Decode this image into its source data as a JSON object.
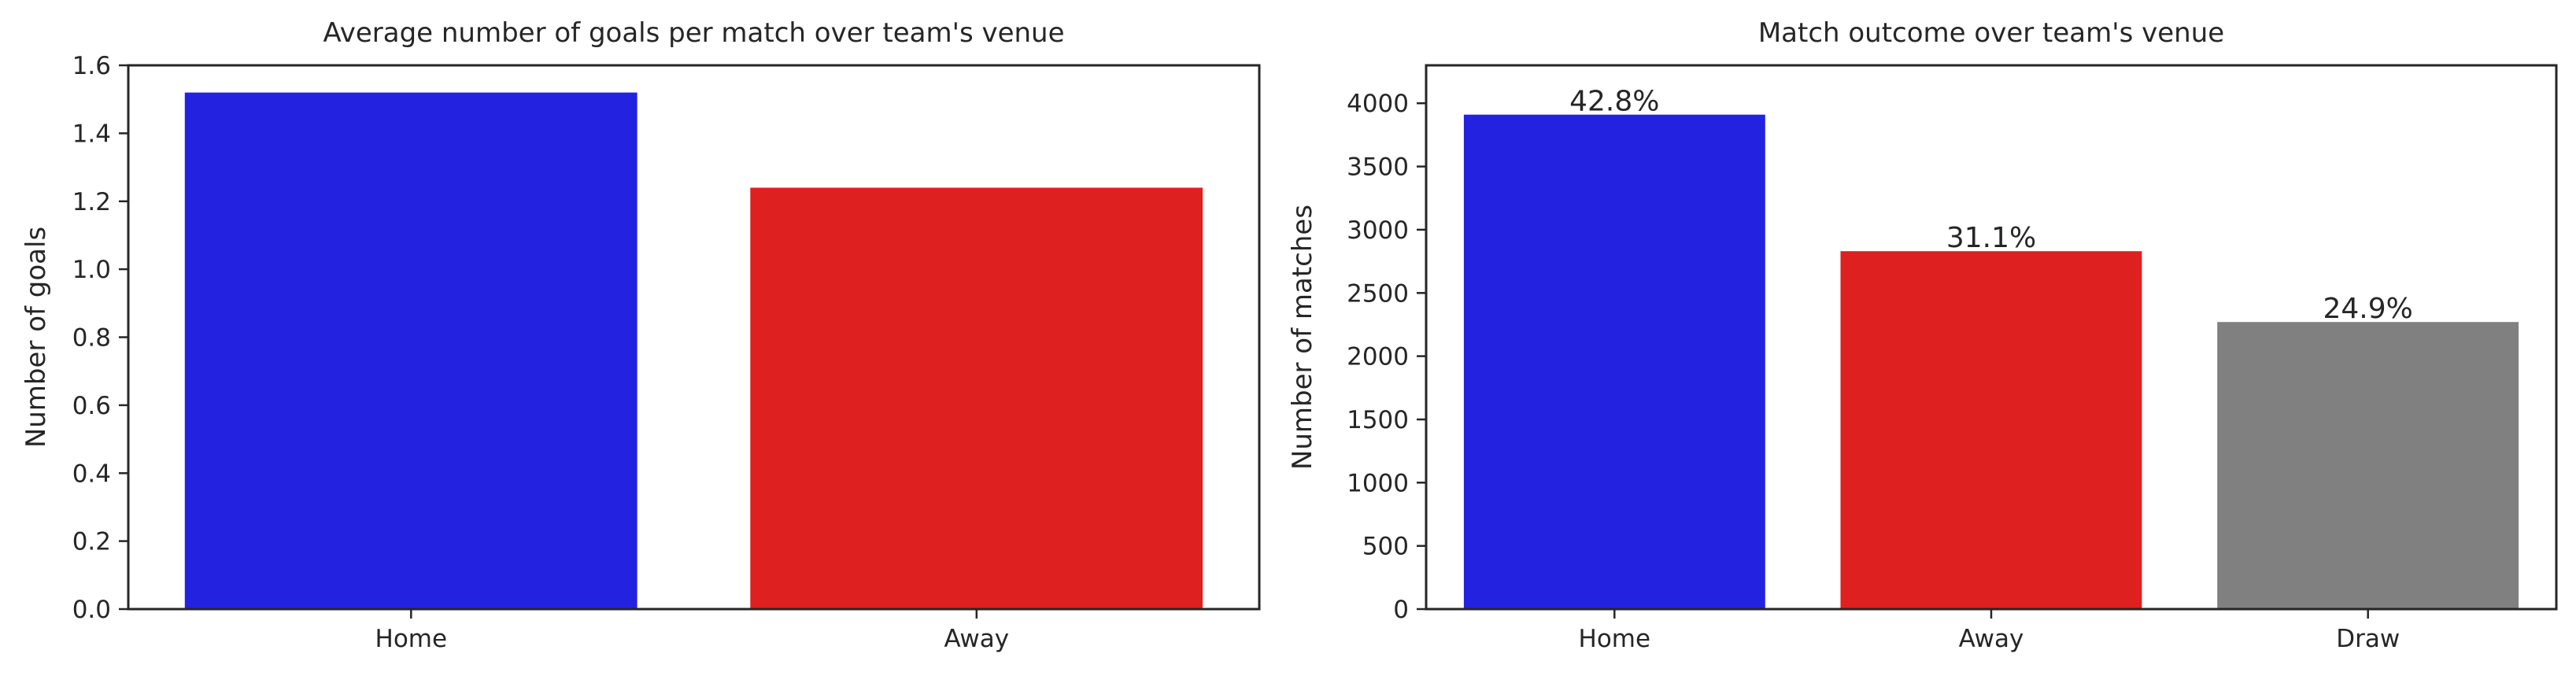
{
  "chart_data": [
    {
      "type": "bar",
      "title": "Average number of goals per match over team's venue",
      "xlabel": "",
      "ylabel": "Number of goals",
      "categories": [
        "Home",
        "Away"
      ],
      "values": [
        1.52,
        1.24
      ],
      "colors": [
        "#2222e0",
        "#de2020"
      ],
      "ylim": [
        0,
        1.6
      ],
      "yticks": [
        0.0,
        0.2,
        0.4,
        0.6,
        0.8,
        1.0,
        1.2,
        1.4,
        1.6
      ],
      "ytick_labels": [
        "0.0",
        "0.2",
        "0.4",
        "0.6",
        "0.8",
        "1.0",
        "1.2",
        "1.4",
        "1.6"
      ],
      "grid": false,
      "data_labels": []
    },
    {
      "type": "bar",
      "title": "Match outcome over team's venue",
      "xlabel": "",
      "ylabel": "Number of matches",
      "categories": [
        "Home",
        "Away",
        "Draw"
      ],
      "values": [
        3910,
        2830,
        2270
      ],
      "colors": [
        "#2222e0",
        "#de2020",
        "#808080"
      ],
      "ylim": [
        0,
        4300
      ],
      "yticks": [
        0,
        500,
        1000,
        1500,
        2000,
        2500,
        3000,
        3500,
        4000
      ],
      "ytick_labels": [
        "0",
        "500",
        "1000",
        "1500",
        "2000",
        "2500",
        "3000",
        "3500",
        "4000"
      ],
      "grid": false,
      "data_labels": [
        "42.8%",
        "31.1%",
        "24.9%"
      ]
    }
  ]
}
